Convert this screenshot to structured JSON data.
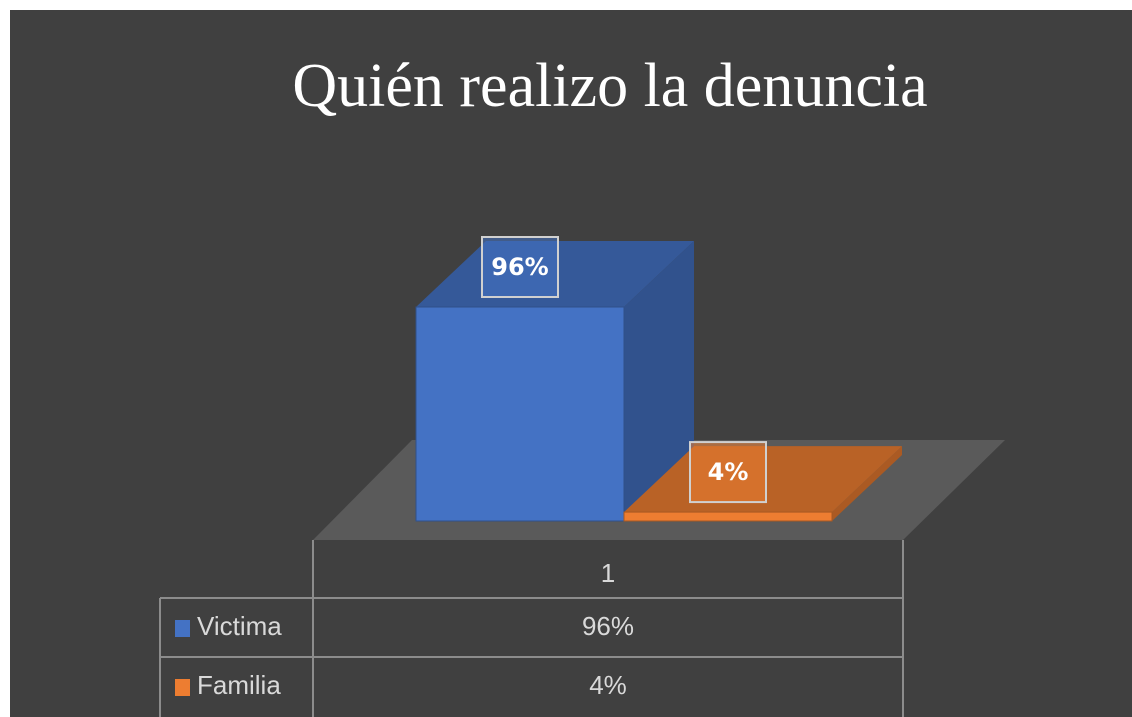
{
  "chart_data": {
    "type": "bar3d",
    "title": "Quién realizo la denuncia",
    "categories": [
      "1"
    ],
    "series": [
      {
        "name": "Victima",
        "color": "#4472c4",
        "values": [
          96
        ],
        "value_labels": [
          "96%"
        ]
      },
      {
        "name": "Familia",
        "color": "#ed7d31",
        "values": [
          4
        ],
        "value_labels": [
          "4%"
        ]
      }
    ]
  }
}
